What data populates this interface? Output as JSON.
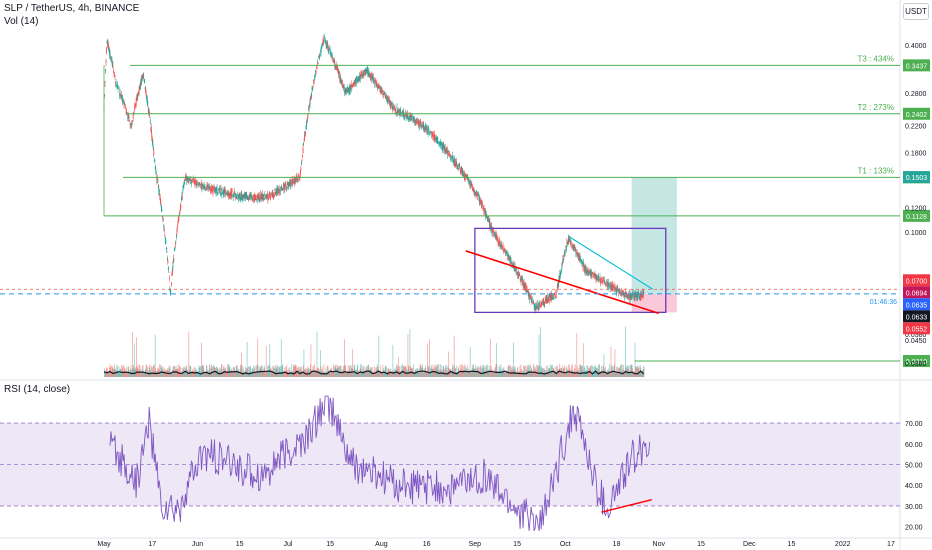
{
  "header": {
    "title": "SLP / TetherUS, 4h, BINANCE",
    "vol_label": "Vol (14)",
    "currency": "USDT",
    "rsi_label": "RSI (14, close)"
  },
  "colors": {
    "up": "#26a69a",
    "down": "#ef5350",
    "target_line": "#4caf50",
    "box": "#673ab7",
    "trendline": "#ff0000",
    "upper_trend": "#00bcd4",
    "rsi_line": "#7e57c2",
    "rsi_band": "#ede7f6",
    "current_price": "#2196f3",
    "profit_zone": "#b2dfdb",
    "loss_zone": "#f8bbd0"
  },
  "chart_data": [
    {
      "type": "candlestick",
      "title": "SLP / TetherUS, 4h, BINANCE",
      "price_scale": "log",
      "ylim": [
        0.0355,
        0.44
      ],
      "y_ticks": [
        "0.4000",
        "0.2800",
        "0.2200",
        "0.1800",
        "0.1200",
        "0.1000",
        "0.0700",
        "0.0450",
        "0.0380"
      ],
      "x_ticks": [
        "May",
        "17",
        "Jun",
        "15",
        "Jul",
        "15",
        "Aug",
        "16",
        "Sep",
        "15",
        "Oct",
        "18",
        "Nov",
        "15",
        "Dec",
        "15",
        "2022",
        "17"
      ],
      "series_path": [
        {
          "date": "2021-05-01",
          "price": 0.25
        },
        {
          "date": "2021-05-02",
          "price": 0.41
        },
        {
          "date": "2021-05-05",
          "price": 0.3
        },
        {
          "date": "2021-05-10",
          "price": 0.22
        },
        {
          "date": "2021-05-14",
          "price": 0.32
        },
        {
          "date": "2021-05-18",
          "price": 0.16
        },
        {
          "date": "2021-05-23",
          "price": 0.063
        },
        {
          "date": "2021-05-28",
          "price": 0.15
        },
        {
          "date": "2021-06-03",
          "price": 0.14
        },
        {
          "date": "2021-06-15",
          "price": 0.13
        },
        {
          "date": "2021-06-25",
          "price": 0.13
        },
        {
          "date": "2021-07-05",
          "price": 0.15
        },
        {
          "date": "2021-07-13",
          "price": 0.42
        },
        {
          "date": "2021-07-20",
          "price": 0.28
        },
        {
          "date": "2021-07-27",
          "price": 0.33
        },
        {
          "date": "2021-08-05",
          "price": 0.25
        },
        {
          "date": "2021-08-15",
          "price": 0.22
        },
        {
          "date": "2021-08-25",
          "price": 0.17
        },
        {
          "date": "2021-09-02",
          "price": 0.13
        },
        {
          "date": "2021-09-07",
          "price": 0.1
        },
        {
          "date": "2021-09-13",
          "price": 0.08
        },
        {
          "date": "2021-09-21",
          "price": 0.057
        },
        {
          "date": "2021-09-28",
          "price": 0.063
        },
        {
          "date": "2021-10-02",
          "price": 0.095
        },
        {
          "date": "2021-10-08",
          "price": 0.075
        },
        {
          "date": "2021-10-15",
          "price": 0.068
        },
        {
          "date": "2021-10-22",
          "price": 0.062
        },
        {
          "date": "2021-10-26",
          "price": 0.063
        }
      ],
      "levels": [
        {
          "name": "T3 : 434%",
          "value": 0.3437,
          "label": "0.3437"
        },
        {
          "name": "T2 : 273%",
          "value": 0.2402,
          "label": "0.2402"
        },
        {
          "name": "T1 : 133%",
          "value": 0.15,
          "label": "0.1500"
        },
        {
          "name": "",
          "value": 0.1128,
          "label": "0.1128"
        }
      ],
      "price_badges": [
        {
          "label": "0.1503",
          "value": 0.1503,
          "color": "#26a69a"
        },
        {
          "label": "0.0700",
          "value": 0.07,
          "color": "#f23645"
        },
        {
          "label": "0.0694",
          "value": 0.0694,
          "color": "#c2185b"
        },
        {
          "label": "0.0635",
          "value": 0.0635,
          "color": "#2962ff"
        },
        {
          "label": "0.0633",
          "value": 0.0633,
          "color": "#131722"
        },
        {
          "label": "0.0552",
          "value": 0.0552,
          "color": "#f23645"
        }
      ],
      "current_price": 0.0633,
      "current_price_countdown": "01:46:36",
      "dashed_level": 0.0655,
      "pattern_box": {
        "from": "2021-09-01",
        "to": "2021-10-31",
        "high": 0.1028,
        "low": 0.0552
      },
      "position": {
        "entry": 0.0633,
        "target": 0.1503,
        "stop": 0.0552,
        "from": "2021-10-23",
        "to": "2021-11-07"
      }
    },
    {
      "type": "volume",
      "title": "Vol (14)",
      "y_ticks": [
        "0.0450",
        "0.0380"
      ],
      "level_label": "0.0310",
      "series_name": "Vol (14)"
    },
    {
      "type": "line",
      "title": "RSI (14, close)",
      "ylim": [
        15,
        85
      ],
      "y_ticks": [
        70,
        60,
        50,
        40,
        30,
        20
      ],
      "y_tick_labels": [
        "70.00",
        "60.00",
        "50.00",
        "40.00",
        "30.00",
        "20.00"
      ],
      "band": [
        30,
        70
      ],
      "series_path": [
        {
          "date": "2021-05-01",
          "rsi": 58
        },
        {
          "date": "2021-05-10",
          "rsi": 42
        },
        {
          "date": "2021-05-14",
          "rsi": 72
        },
        {
          "date": "2021-05-18",
          "rsi": 30
        },
        {
          "date": "2021-05-23",
          "rsi": 27
        },
        {
          "date": "2021-06-01",
          "rsi": 55
        },
        {
          "date": "2021-06-20",
          "rsi": 45
        },
        {
          "date": "2021-07-05",
          "rsi": 62
        },
        {
          "date": "2021-07-12",
          "rsi": 82
        },
        {
          "date": "2021-07-20",
          "rsi": 50
        },
        {
          "date": "2021-08-05",
          "rsi": 40
        },
        {
          "date": "2021-08-20",
          "rsi": 38
        },
        {
          "date": "2021-09-02",
          "rsi": 44
        },
        {
          "date": "2021-09-13",
          "rsi": 28
        },
        {
          "date": "2021-09-21",
          "rsi": 20
        },
        {
          "date": "2021-10-02",
          "rsi": 78
        },
        {
          "date": "2021-10-09",
          "rsi": 40
        },
        {
          "date": "2021-10-13",
          "rsi": 28
        },
        {
          "date": "2021-10-22",
          "rsi": 55
        },
        {
          "date": "2021-10-26",
          "rsi": 60
        }
      ],
      "divergence_line": {
        "from": "2021-10-13",
        "to": "2021-10-27",
        "start": 27,
        "end": 33
      }
    }
  ]
}
